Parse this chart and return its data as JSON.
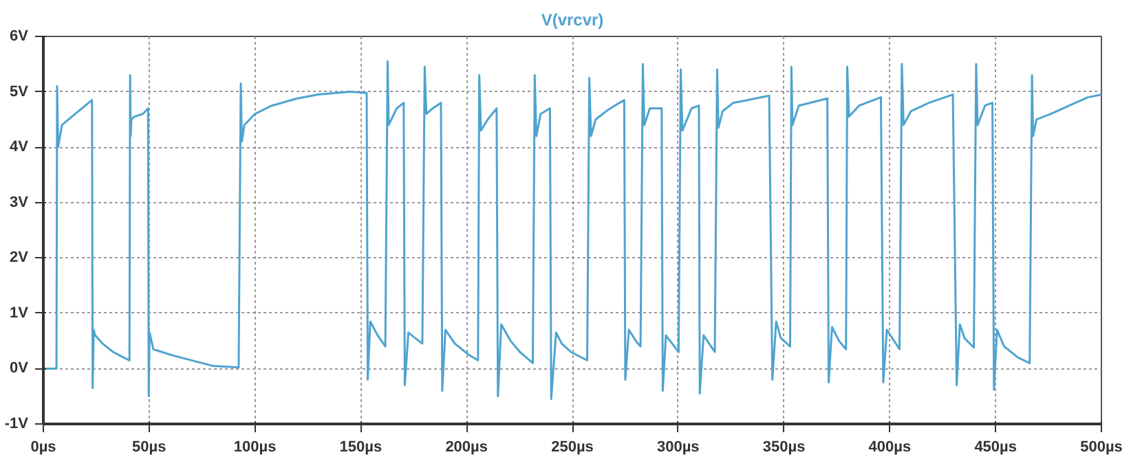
{
  "chart_data": {
    "type": "line",
    "xlim": [
      0,
      500
    ],
    "ylim": [
      -1,
      6
    ],
    "xticks": [
      {
        "value": 0,
        "label": "0µs"
      },
      {
        "value": 50,
        "label": "50µs"
      },
      {
        "value": 100,
        "label": "100µs"
      },
      {
        "value": 150,
        "label": "150µs"
      },
      {
        "value": 200,
        "label": "200µs"
      },
      {
        "value": 250,
        "label": "250µs"
      },
      {
        "value": 300,
        "label": "300µs"
      },
      {
        "value": 350,
        "label": "350µs"
      },
      {
        "value": 400,
        "label": "400µs"
      },
      {
        "value": 450,
        "label": "450µs"
      },
      {
        "value": 500,
        "label": "500µs"
      }
    ],
    "yticks": [
      {
        "value": -1,
        "label": "-1V"
      },
      {
        "value": 0,
        "label": "0V"
      },
      {
        "value": 1,
        "label": "1V"
      },
      {
        "value": 2,
        "label": "2V"
      },
      {
        "value": 3,
        "label": "3V"
      },
      {
        "value": 4,
        "label": "4V"
      },
      {
        "value": 5,
        "label": "5V"
      },
      {
        "value": 6,
        "label": "6V"
      }
    ],
    "grid": true,
    "legend": "top",
    "line_style": "solid",
    "marker": "none",
    "series": [
      {
        "name": "V(vrcvr)",
        "color": "#4fa3cf",
        "x": [
          0,
          6.2,
          6.5,
          7,
          8.8,
          15,
          23,
          23.3,
          23.8,
          24.5,
          28,
          33,
          38,
          40.7,
          41,
          41.3,
          41.6,
          43,
          47,
          49.5,
          49.8,
          50.2,
          52,
          60,
          70,
          80,
          92.3,
          93.3,
          93.8,
          95,
          100,
          108,
          120,
          130,
          145,
          152.8,
          153.3,
          154.5,
          158,
          161.6,
          162.7,
          163.2,
          167,
          170.3,
          170.8,
          172.5,
          179.1,
          180.2,
          181,
          184,
          187.9,
          188.5,
          190,
          194.5,
          201,
          205.4,
          206,
          206.8,
          210,
          214.2,
          214.8,
          216.4,
          220.8,
          225.2,
          231.3,
          232.2,
          233,
          235,
          239.4,
          240,
          242.3,
          245,
          249.3,
          257,
          258,
          258.8,
          261,
          266,
          270,
          274.5,
          275,
          276.7,
          280,
          282.2,
          283.3,
          284,
          286.6,
          292.2,
          292.7,
          294.2,
          300.2,
          301.2,
          302,
          306.3,
          309.8,
          310.2,
          312,
          317.3,
          318.4,
          319,
          321,
          326,
          332.6,
          343,
          344.5,
          346.3,
          348.5,
          352.9,
          353.5,
          354,
          357,
          370.5,
          371.1,
          372.7,
          376,
          379.3,
          379.9,
          380.7,
          385.5,
          395.8,
          396.9,
          398.6,
          404.6,
          405.7,
          406.5,
          410,
          418.5,
          429.8,
          431.6,
          433.1,
          435.3,
          439.7,
          440.8,
          441.5,
          445,
          448.5,
          449.2,
          450.7,
          454,
          460.6,
          466.1,
          467.2,
          467.7,
          469.3,
          476,
          484.8,
          493.6,
          500
        ],
        "values": [
          0,
          0,
          5.1,
          4.0,
          4.4,
          4.6,
          4.85,
          -0.35,
          0.7,
          0.6,
          0.45,
          0.3,
          0.2,
          0.15,
          5.3,
          4.2,
          4.5,
          4.55,
          4.6,
          4.7,
          -0.5,
          0.65,
          0.35,
          0.25,
          0.15,
          0.05,
          0.02,
          5.15,
          4.1,
          4.4,
          4.6,
          4.75,
          4.88,
          4.95,
          5.0,
          4.98,
          -0.2,
          0.85,
          0.6,
          0.4,
          5.55,
          4.4,
          4.7,
          4.8,
          -0.3,
          0.65,
          0.45,
          5.45,
          4.6,
          4.7,
          4.8,
          -0.4,
          0.7,
          0.45,
          0.25,
          0.15,
          5.3,
          4.3,
          4.5,
          4.7,
          -0.5,
          0.8,
          0.5,
          0.3,
          0.1,
          5.3,
          4.2,
          4.6,
          4.7,
          -0.55,
          0.65,
          0.45,
          0.3,
          0.15,
          5.25,
          4.2,
          4.5,
          4.65,
          4.75,
          4.85,
          -0.2,
          0.7,
          0.5,
          0.4,
          5.5,
          4.4,
          4.7,
          4.7,
          -0.4,
          0.6,
          0.3,
          5.4,
          4.3,
          4.7,
          4.75,
          -0.45,
          0.6,
          0.3,
          5.4,
          4.35,
          4.65,
          4.8,
          4.85,
          4.93,
          -0.2,
          0.85,
          0.55,
          0.4,
          5.45,
          4.4,
          4.75,
          4.88,
          -0.25,
          0.75,
          0.5,
          0.35,
          5.45,
          4.55,
          4.75,
          4.9,
          -0.25,
          0.7,
          0.35,
          5.5,
          4.4,
          4.65,
          4.8,
          4.95,
          -0.3,
          0.8,
          0.55,
          0.38,
          5.5,
          4.4,
          4.75,
          4.8,
          -0.38,
          0.7,
          0.4,
          0.2,
          0.1,
          5.3,
          4.2,
          4.5,
          4.6,
          4.75,
          4.9,
          4.95
        ]
      }
    ]
  }
}
